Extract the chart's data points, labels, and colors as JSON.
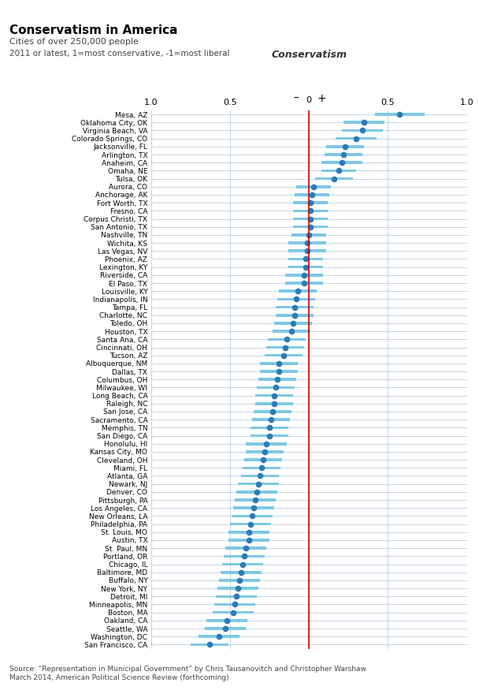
{
  "title": "Conservatism in America",
  "subtitle": "Cities of over 250,000 people",
  "axis_label": "2011 or latest, 1=most conservative, -1=most liberal",
  "conservatism_label": "Conservatism",
  "source": "Source: “Representation in Municipal Government” by Chris Tausanovitch and Christopher Warshaw\nMarch 2014, American Political Science Review (forthcoming)",
  "xlim": [
    -1.0,
    1.0
  ],
  "cities": [
    "Mesa, AZ",
    "Oklahoma City, OK",
    "Virginia Beach, VA",
    "Colorado Springs, CO",
    "Jacksonville, FL",
    "Arlington, TX",
    "Anaheim, CA",
    "Omaha, NE",
    "Tulsa, OK",
    "Aurora, CO",
    "Anchorage, AK",
    "Fort Worth, TX",
    "Fresno, CA",
    "Corpus Christi, TX",
    "San Antonio, TX",
    "Nashville, TN",
    "Wichita, KS",
    "Las Vegas, NV",
    "Phoenix, AZ",
    "Lexington, KY",
    "Riverside, CA",
    "El Paso, TX",
    "Louisville, KY",
    "Indianapolis, IN",
    "Tampa, FL",
    "Charlotte, NC",
    "Toledo, OH",
    "Houston, TX",
    "Santa Ana, CA",
    "Cincinnati, OH",
    "Tucson, AZ",
    "Albuquerque, NM",
    "Dallas, TX",
    "Columbus, OH",
    "Milwaukee, WI",
    "Long Beach, CA",
    "Raleigh, NC",
    "San Jose, CA",
    "Sacramento, CA",
    "Memphis, TN",
    "San Diego, CA",
    "Honolulu, HI",
    "Kansas City, MO",
    "Cleveland, OH",
    "Miami, FL",
    "Atlanta, GA",
    "Newark, NJ",
    "Denver, CO",
    "Pittsburgh, PA",
    "Los Angeles, CA",
    "New Orleans, LA",
    "Philadelphia, PA",
    "St. Louis, MO",
    "Austin, TX",
    "St. Paul, MN",
    "Portland, OR",
    "Chicago, IL",
    "Baltimore, MD",
    "Buffalo, NY",
    "New York, NY",
    "Detroit, MI",
    "Minneapolis, MN",
    "Boston, MA",
    "Oakland, CA",
    "Seattle, WA",
    "Washington, DC",
    "San Francisco, CA"
  ],
  "point_estimates": [
    0.57,
    0.35,
    0.34,
    0.3,
    0.23,
    0.22,
    0.21,
    0.19,
    0.16,
    0.03,
    0.02,
    0.01,
    0.01,
    0.01,
    0.01,
    0.0,
    -0.01,
    -0.01,
    -0.02,
    -0.02,
    -0.03,
    -0.03,
    -0.07,
    -0.08,
    -0.09,
    -0.09,
    -0.1,
    -0.11,
    -0.14,
    -0.15,
    -0.16,
    -0.19,
    -0.19,
    -0.2,
    -0.21,
    -0.22,
    -0.22,
    -0.23,
    -0.24,
    -0.25,
    -0.25,
    -0.27,
    -0.28,
    -0.29,
    -0.3,
    -0.31,
    -0.32,
    -0.33,
    -0.34,
    -0.35,
    -0.36,
    -0.37,
    -0.38,
    -0.38,
    -0.4,
    -0.41,
    -0.42,
    -0.43,
    -0.44,
    -0.45,
    -0.46,
    -0.47,
    -0.48,
    -0.52,
    -0.53,
    -0.57,
    -0.63
  ],
  "ci_low": [
    0.42,
    0.22,
    0.21,
    0.17,
    0.11,
    0.1,
    0.08,
    0.08,
    0.04,
    -0.08,
    -0.09,
    -0.1,
    -0.1,
    -0.1,
    -0.1,
    -0.11,
    -0.13,
    -0.13,
    -0.13,
    -0.13,
    -0.15,
    -0.15,
    -0.19,
    -0.2,
    -0.21,
    -0.21,
    -0.22,
    -0.23,
    -0.26,
    -0.27,
    -0.28,
    -0.31,
    -0.31,
    -0.32,
    -0.33,
    -0.34,
    -0.34,
    -0.35,
    -0.36,
    -0.37,
    -0.37,
    -0.4,
    -0.4,
    -0.41,
    -0.42,
    -0.43,
    -0.45,
    -0.46,
    -0.47,
    -0.48,
    -0.49,
    -0.5,
    -0.51,
    -0.51,
    -0.53,
    -0.54,
    -0.55,
    -0.56,
    -0.57,
    -0.58,
    -0.59,
    -0.6,
    -0.61,
    -0.65,
    -0.66,
    -0.7,
    -0.75
  ],
  "ci_high": [
    0.73,
    0.48,
    0.47,
    0.43,
    0.35,
    0.34,
    0.34,
    0.3,
    0.28,
    0.14,
    0.13,
    0.12,
    0.12,
    0.12,
    0.12,
    0.11,
    0.11,
    0.11,
    0.09,
    0.09,
    0.09,
    0.09,
    0.05,
    0.04,
    0.03,
    0.03,
    0.02,
    0.01,
    -0.02,
    -0.03,
    -0.04,
    -0.07,
    -0.07,
    -0.08,
    -0.09,
    -0.1,
    -0.1,
    -0.11,
    -0.12,
    -0.13,
    -0.13,
    -0.14,
    -0.16,
    -0.17,
    -0.18,
    -0.19,
    -0.19,
    -0.2,
    -0.21,
    -0.22,
    -0.23,
    -0.24,
    -0.25,
    -0.25,
    -0.27,
    -0.28,
    -0.29,
    -0.3,
    -0.31,
    -0.32,
    -0.33,
    -0.34,
    -0.35,
    -0.39,
    -0.4,
    -0.44,
    -0.51
  ],
  "dot_color": "#2b7bb5",
  "bar_color": "#7ec8e3",
  "red_line_color": "#cc0000",
  "grid_color": "#b0c4d8",
  "bg_color": "#ffffff",
  "title_color": "#000000",
  "title_bar_color": "#cc0000"
}
